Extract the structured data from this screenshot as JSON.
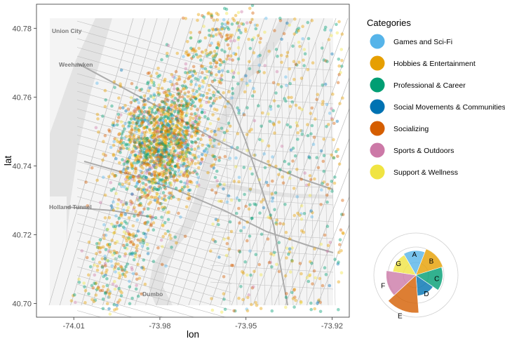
{
  "chart_data": {
    "type": "scatter",
    "xlabel": "lon",
    "ylabel": "lat",
    "xlim": [
      -74.023,
      -73.914
    ],
    "ylim": [
      40.696,
      40.787
    ],
    "xticks": [
      -74.01,
      -73.98,
      -73.95,
      -73.92
    ],
    "xtick_labels": [
      "-74.01",
      "-73.98",
      "-73.95",
      "-73.92"
    ],
    "yticks": [
      40.7,
      40.72,
      40.74,
      40.76,
      40.78
    ],
    "ytick_labels": [
      "40.70",
      "40.72",
      "40.74",
      "40.76",
      "40.78"
    ],
    "grid": false,
    "basemap_labels": [
      "Union City",
      "Weehawken",
      "Holland Tunnel",
      "Dumbo"
    ],
    "legend_title": "Categories",
    "legend_position": "right",
    "categories": [
      {
        "name": "Games and Sci-Fi",
        "color": "#56B4E9",
        "short": "A",
        "rose_value": 0.42
      },
      {
        "name": "Hobbies & Entertainment",
        "color": "#E69F00",
        "short": "B",
        "rose_value": 0.55
      },
      {
        "name": "Professional & Career",
        "color": "#009E73",
        "short": "C",
        "rose_value": 0.5
      },
      {
        "name": "Social Movements & Communities",
        "color": "#0072B2",
        "short": "D",
        "rose_value": 0.3
      },
      {
        "name": "Socializing",
        "color": "#D55E00",
        "short": "E",
        "rose_value": 1.0
      },
      {
        "name": "Sports & Outdoors",
        "color": "#CC79A7",
        "short": "F",
        "rose_value": 0.62
      },
      {
        "name": "Support & Wellness",
        "color": "#F0E442",
        "short": "G",
        "rose_value": 0.38
      }
    ]
  }
}
